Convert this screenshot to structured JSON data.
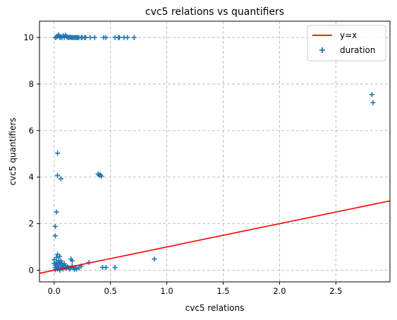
{
  "chart_data": {
    "type": "scatter",
    "title": "cvc5 relations vs quantifiers",
    "xlabel": "cvc5 relations",
    "ylabel": "cvc5 quantifiers",
    "xlim": [
      -0.13,
      2.98
    ],
    "ylim": [
      -0.5,
      10.7
    ],
    "xticks": [
      0.0,
      0.5,
      1.0,
      1.5,
      2.0,
      2.5
    ],
    "xtick_labels": [
      "0.0",
      "0.5",
      "1.0",
      "1.5",
      "2.0",
      "2.5"
    ],
    "yticks": [
      0,
      2,
      4,
      6,
      8,
      10
    ],
    "ytick_labels": [
      "0",
      "2",
      "4",
      "6",
      "8",
      "10"
    ],
    "grid": true,
    "legend_position": "top-right",
    "colors": {
      "scatter": "#1f77b4",
      "line": "#ff0000",
      "grid": "#b0b0b0"
    },
    "series": [
      {
        "name": "y=x",
        "kind": "line",
        "x": [
          -0.13,
          2.98
        ],
        "y": [
          -0.13,
          2.98
        ]
      },
      {
        "name": "duration",
        "kind": "scatter",
        "marker": "plus",
        "points": [
          [
            0.01,
            10.0
          ],
          [
            0.02,
            10.02
          ],
          [
            0.03,
            10.05
          ],
          [
            0.04,
            10.12
          ],
          [
            0.05,
            10.0
          ],
          [
            0.06,
            10.03
          ],
          [
            0.07,
            10.0
          ],
          [
            0.08,
            10.08
          ],
          [
            0.09,
            10.0
          ],
          [
            0.1,
            10.1
          ],
          [
            0.11,
            10.04
          ],
          [
            0.12,
            10.0
          ],
          [
            0.13,
            10.0
          ],
          [
            0.14,
            10.02
          ],
          [
            0.15,
            10.0
          ],
          [
            0.16,
            10.0
          ],
          [
            0.17,
            10.0
          ],
          [
            0.18,
            10.0
          ],
          [
            0.19,
            10.0
          ],
          [
            0.2,
            10.0
          ],
          [
            0.21,
            10.0
          ],
          [
            0.22,
            10.0
          ],
          [
            0.24,
            10.0
          ],
          [
            0.25,
            10.0
          ],
          [
            0.27,
            10.0
          ],
          [
            0.28,
            10.0
          ],
          [
            0.32,
            10.0
          ],
          [
            0.36,
            10.0
          ],
          [
            0.44,
            10.0
          ],
          [
            0.46,
            10.0
          ],
          [
            0.54,
            10.0
          ],
          [
            0.57,
            10.0
          ],
          [
            0.58,
            10.0
          ],
          [
            0.62,
            10.0
          ],
          [
            0.65,
            10.0
          ],
          [
            0.71,
            10.0
          ],
          [
            2.82,
            7.55
          ],
          [
            2.83,
            7.2
          ],
          [
            0.03,
            5.03
          ],
          [
            0.03,
            4.07
          ],
          [
            0.06,
            3.93
          ],
          [
            0.39,
            4.13
          ],
          [
            0.4,
            4.07
          ],
          [
            0.41,
            4.1
          ],
          [
            0.42,
            4.04
          ],
          [
            0.02,
            2.5
          ],
          [
            0.01,
            1.88
          ],
          [
            0.01,
            1.48
          ],
          [
            0.89,
            0.48
          ],
          [
            0.0,
            0.45
          ],
          [
            0.0,
            0.3
          ],
          [
            0.01,
            0.2
          ],
          [
            0.01,
            0.1
          ],
          [
            0.01,
            0.02
          ],
          [
            0.02,
            0.55
          ],
          [
            0.02,
            0.35
          ],
          [
            0.02,
            0.12
          ],
          [
            0.03,
            0.68
          ],
          [
            0.03,
            0.25
          ],
          [
            0.03,
            0.05
          ],
          [
            0.04,
            0.42
          ],
          [
            0.04,
            0.15
          ],
          [
            0.05,
            0.6
          ],
          [
            0.05,
            0.3
          ],
          [
            0.05,
            0.0
          ],
          [
            0.06,
            0.22
          ],
          [
            0.06,
            0.4
          ],
          [
            0.07,
            0.1
          ],
          [
            0.07,
            0.3
          ],
          [
            0.08,
            0.18
          ],
          [
            0.08,
            0.05
          ],
          [
            0.09,
            0.28
          ],
          [
            0.1,
            0.12
          ],
          [
            0.1,
            0.2
          ],
          [
            0.11,
            0.08
          ],
          [
            0.12,
            0.15
          ],
          [
            0.13,
            0.1
          ],
          [
            0.14,
            0.05
          ],
          [
            0.15,
            0.48
          ],
          [
            0.16,
            0.4
          ],
          [
            0.16,
            0.18
          ],
          [
            0.17,
            0.1
          ],
          [
            0.18,
            0.03
          ],
          [
            0.19,
            0.12
          ],
          [
            0.2,
            0.05
          ],
          [
            0.22,
            0.1
          ],
          [
            0.24,
            0.18
          ],
          [
            0.31,
            0.33
          ],
          [
            0.43,
            0.12
          ],
          [
            0.46,
            0.12
          ],
          [
            0.54,
            0.12
          ]
        ]
      }
    ]
  }
}
